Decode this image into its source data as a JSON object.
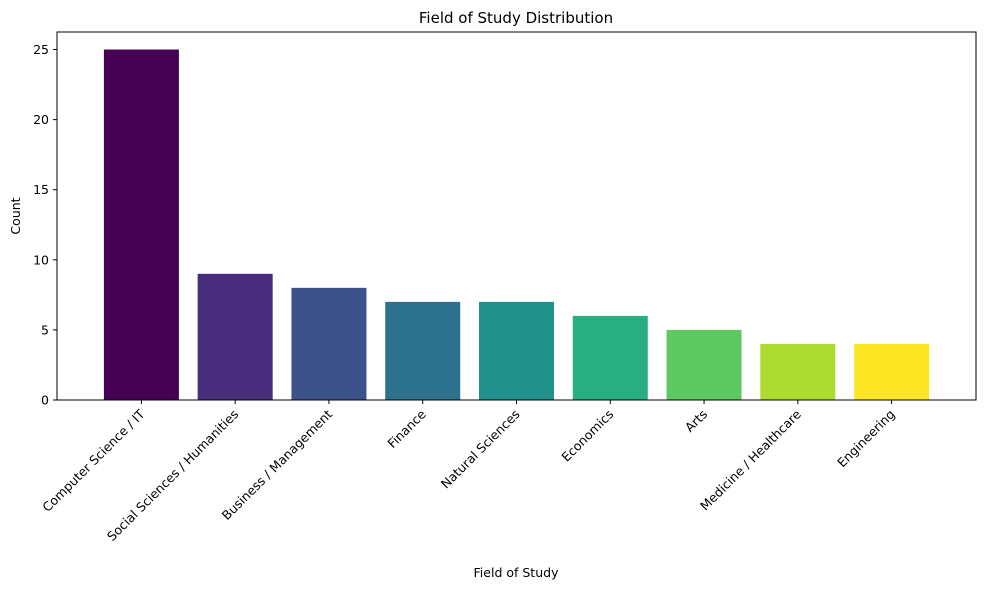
{
  "chart_data": {
    "type": "bar",
    "title": "Field of Study Distribution",
    "xlabel": "Field of Study",
    "ylabel": "Count",
    "categories": [
      "Computer Science / IT",
      "Social Sciences / Humanities",
      "Business / Management",
      "Finance",
      "Natural Sciences",
      "Economics",
      "Arts",
      "Medicine / Healthcare",
      "Engineering"
    ],
    "values": [
      25,
      9,
      8,
      7,
      7,
      6,
      5,
      4,
      4
    ],
    "colors": [
      "#440154",
      "#472d7b",
      "#3b528b",
      "#2c728e",
      "#21918c",
      "#28ae80",
      "#5ec962",
      "#addc30",
      "#fde725"
    ],
    "ylim": [
      0,
      26.25
    ],
    "yticks": [
      0,
      5,
      10,
      15,
      20,
      25
    ],
    "grid": false,
    "legend": "none"
  }
}
